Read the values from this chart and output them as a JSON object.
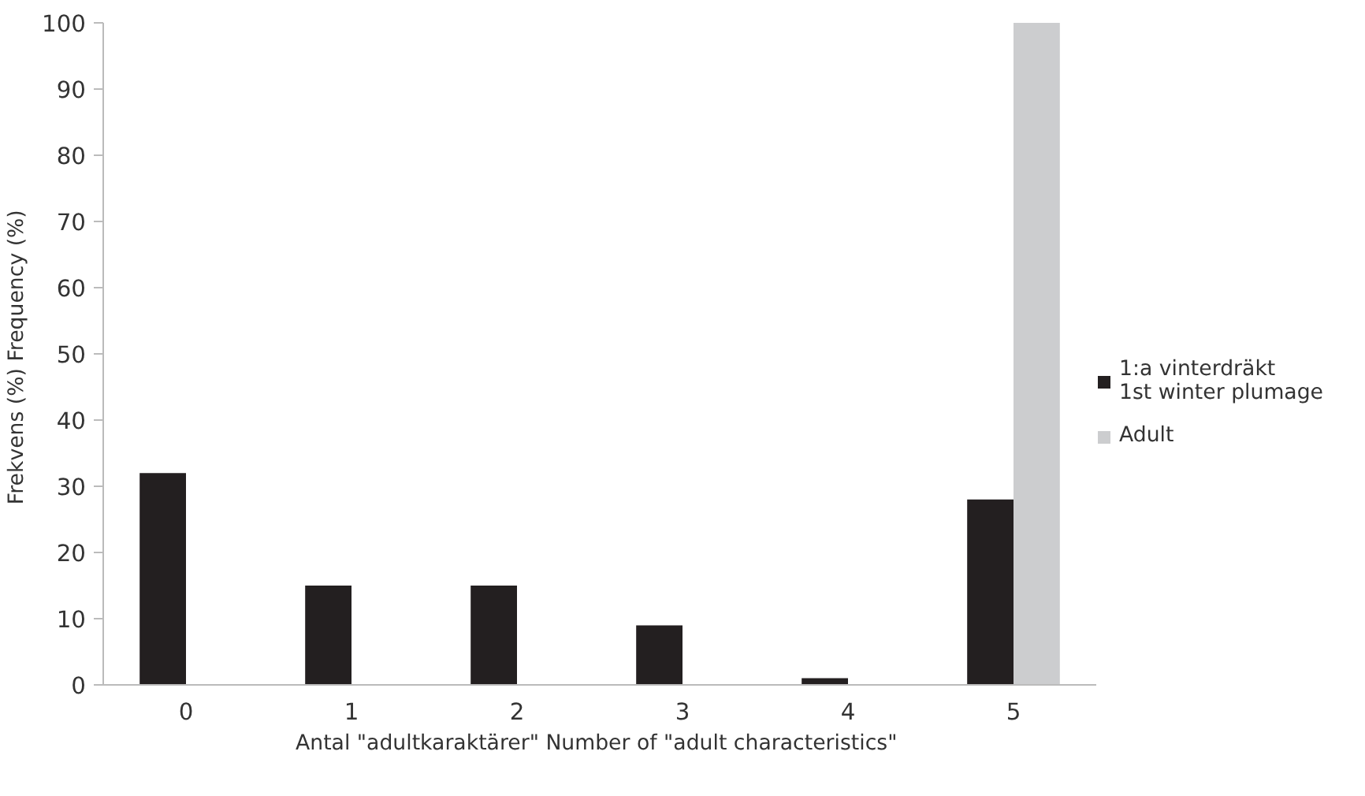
{
  "chart_data": {
    "type": "bar",
    "xlabel": "Antal \"adultkaraktärer\"  Number of \"adult characteristics\"",
    "ylabel": "Frekvens (%)  Frequency (%)",
    "categories": [
      "0",
      "1",
      "2",
      "3",
      "4",
      "5"
    ],
    "series": [
      {
        "name": "1:a vinterdräkt\n1st winter plumage",
        "color": "#231f20",
        "values": [
          32,
          15,
          15,
          9,
          1,
          28
        ]
      },
      {
        "name": "Adult",
        "color": "#cccdcf",
        "values": [
          0,
          0,
          0,
          0,
          0,
          100
        ]
      }
    ],
    "ylim": [
      0,
      100
    ],
    "yticks": [
      0,
      10,
      20,
      30,
      40,
      50,
      60,
      70,
      80,
      90,
      100
    ],
    "grid": false,
    "legend": "right"
  }
}
